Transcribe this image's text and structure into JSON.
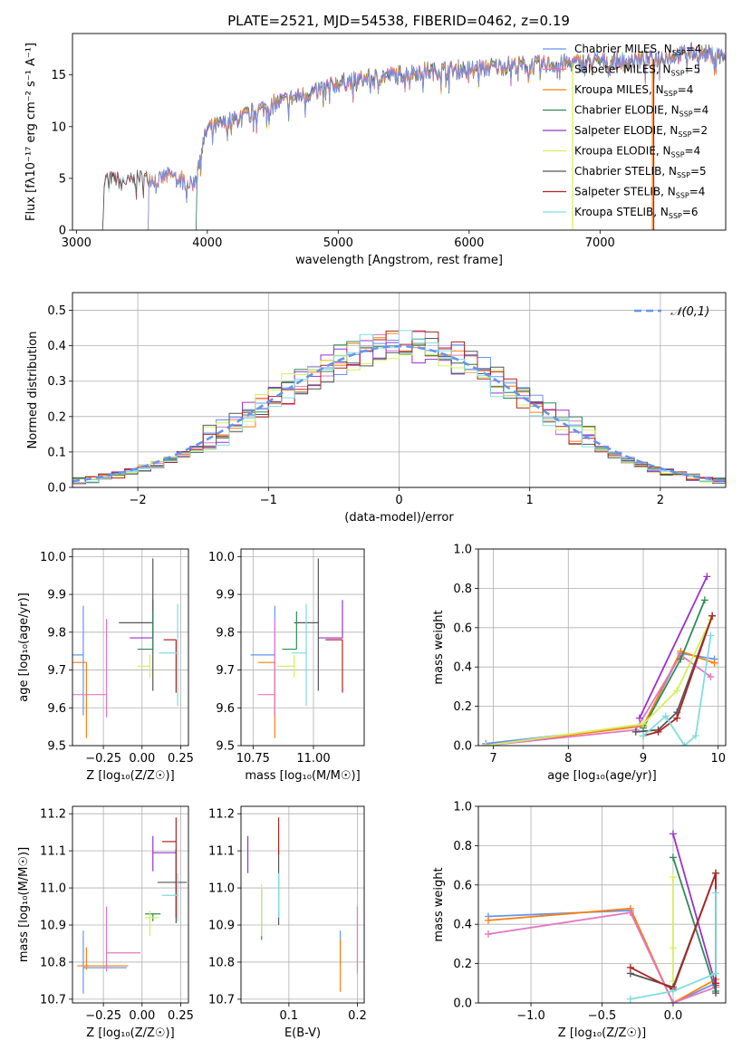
{
  "figure_title": "PLATE=2521, MJD=54538, FIBERID=0462, z=0.19",
  "chart_data": [
    {
      "type": "line",
      "id": "spectrum",
      "xlabel": "wavelength [Angstrom, rest frame]",
      "ylabel": "Flux [fλ10⁻¹⁷ erg cm⁻² s⁻¹ A⁻¹]",
      "xlim": [
        2970,
        7960
      ],
      "ylim": [
        0,
        19
      ],
      "xticks": [
        "3000",
        "4000",
        "5000",
        "6000",
        "7000"
      ],
      "yticks": [
        "0",
        "5",
        "10",
        "15"
      ],
      "grid": false,
      "legend_placement": "right",
      "continuum_nodes": [
        [
          3200,
          0
        ],
        [
          3215,
          4.8
        ],
        [
          3500,
          4.9
        ],
        [
          3700,
          5.2
        ],
        [
          3900,
          4.6
        ],
        [
          3950,
          7.5
        ],
        [
          4000,
          9.8
        ],
        [
          4200,
          10.6
        ],
        [
          4500,
          12.2
        ],
        [
          4800,
          13.3
        ],
        [
          5000,
          14.2
        ],
        [
          5300,
          14.8
        ],
        [
          5600,
          15.3
        ],
        [
          6000,
          15.6
        ],
        [
          6300,
          15.9
        ],
        [
          6600,
          16.0
        ],
        [
          7000,
          16.3
        ],
        [
          7400,
          16.5
        ],
        [
          7700,
          17.2
        ],
        [
          7960,
          16.8
        ]
      ],
      "series": [
        {
          "name": "Chabrier MILES, N",
          "nssp": "=4",
          "color": "#6495ed",
          "start": 3540
        },
        {
          "name": "Salpeter MILES, N",
          "nssp": "=5",
          "color": "#e377c2",
          "start": 3540
        },
        {
          "name": "Kroupa MILES, N",
          "nssp": "=4",
          "color": "#ff7f0e",
          "start": 3540
        },
        {
          "name": "Chabrier ELODIE, N",
          "nssp": "=4",
          "color": "#2e8b57",
          "start": 3910
        },
        {
          "name": "Salpeter ELODIE, N",
          "nssp": "=2",
          "color": "#9932cc",
          "start": 3910
        },
        {
          "name": "Kroupa ELODIE, N",
          "nssp": "=4",
          "color": "#d4f05a",
          "start": 3910
        },
        {
          "name": "Chabrier STELIB, N",
          "nssp": "=5",
          "color": "#555555",
          "start": 3200
        },
        {
          "name": "Salpeter STELIB, N",
          "nssp": "=4",
          "color": "#b22222",
          "start": 3200
        },
        {
          "name": "Kroupa STELIB, N",
          "nssp": "=6",
          "color": "#7fdde0",
          "start": 3200
        }
      ]
    },
    {
      "type": "histogram",
      "id": "residuals",
      "xlabel": "(data-model)/error",
      "ylabel": "Normed distribution",
      "xlim": [
        -2.5,
        2.5
      ],
      "ylim": [
        0,
        0.55
      ],
      "xticks": [
        "−2",
        "−1",
        "0",
        "1",
        "2"
      ],
      "yticks": [
        "0.0",
        "0.1",
        "0.2",
        "0.3",
        "0.4",
        "0.5"
      ],
      "grid": true,
      "legend_placement": "top-right",
      "reference_curve": {
        "name": "𝒩(0,1)",
        "color": "#6495ed"
      },
      "bin_width": 0.1
    },
    {
      "type": "scatter",
      "id": "age-vs-Z",
      "xlabel": "Z [log₁₀(Z/Z☉)]",
      "ylabel": "age  [log₁₀(age/yr)]",
      "xlim": [
        -0.45,
        0.3
      ],
      "ylim": [
        9.5,
        10.02
      ],
      "xticks": [
        "−0.25",
        "0.00",
        "0.25"
      ],
      "yticks": [
        "9.5",
        "9.6",
        "9.7",
        "9.8",
        "9.9",
        "10.0"
      ],
      "points": [
        {
          "color": "#6495ed",
          "x": -0.38,
          "xerr": [
            0.22,
            0
          ],
          "y": 9.74,
          "yerr": [
            0.16,
            0.13
          ]
        },
        {
          "color": "#ff7f0e",
          "x": -0.36,
          "xerr": [
            0.3,
            0
          ],
          "y": 9.72,
          "yerr": [
            0.2,
            0.0
          ]
        },
        {
          "color": "#e377c2",
          "x": -0.23,
          "xerr": [
            0.22,
            0
          ],
          "y": 9.635,
          "yerr": [
            0.06,
            0.2
          ]
        },
        {
          "color": "#9932cc",
          "x": 0.07,
          "xerr": [
            0.15,
            0
          ],
          "y": 9.785,
          "yerr": [
            0.0,
            0.1
          ]
        },
        {
          "color": "#555555",
          "x": 0.07,
          "xerr": [
            0.22,
            0
          ],
          "y": 9.825,
          "yerr": [
            0.18,
            0.17
          ]
        },
        {
          "color": "#b22222",
          "x": 0.22,
          "xerr": [
            0.08,
            0
          ],
          "y": 9.78,
          "yerr": [
            0.14,
            0.0
          ]
        },
        {
          "color": "#7fdde0",
          "x": 0.23,
          "xerr": [
            0.12,
            0
          ],
          "y": 9.745,
          "yerr": [
            0.14,
            0.13
          ]
        },
        {
          "color": "#2e8b57",
          "x": 0.07,
          "xerr": [
            0.1,
            0
          ],
          "y": 9.755,
          "yerr": [
            0.0,
            0.1
          ]
        },
        {
          "color": "#d4f05a",
          "x": 0.05,
          "xerr": [
            0.08,
            0
          ],
          "y": 9.71,
          "yerr": [
            0.03,
            0.03
          ]
        }
      ]
    },
    {
      "type": "scatter",
      "id": "age-vs-mass",
      "xlabel": "mass [log₁₀(M/M☉)]",
      "ylabel": "",
      "xlim": [
        10.7,
        11.21
      ],
      "ylim": [
        9.5,
        10.02
      ],
      "xticks": [
        "10.75",
        "11.00"
      ],
      "yticks": [
        "9.5",
        "9.6",
        "9.7",
        "9.8",
        "9.9",
        "10.0"
      ],
      "points": [
        {
          "color": "#6495ed",
          "x": 10.84,
          "xerr": [
            0.1,
            0
          ],
          "y": 9.74,
          "yerr": [
            0.16,
            0.13
          ]
        },
        {
          "color": "#ff7f0e",
          "x": 10.84,
          "xerr": [
            0.07,
            0
          ],
          "y": 9.72,
          "yerr": [
            0.2,
            0.0
          ]
        },
        {
          "color": "#e377c2",
          "x": 10.84,
          "xerr": [
            0.07,
            0
          ],
          "y": 9.635,
          "yerr": [
            0.06,
            0.2
          ]
        },
        {
          "color": "#9932cc",
          "x": 11.12,
          "xerr": [
            0.1,
            0
          ],
          "y": 9.785,
          "yerr": [
            0.0,
            0.1
          ]
        },
        {
          "color": "#555555",
          "x": 11.02,
          "xerr": [
            0.1,
            0
          ],
          "y": 9.825,
          "yerr": [
            0.18,
            0.17
          ]
        },
        {
          "color": "#b22222",
          "x": 11.12,
          "xerr": [
            0.07,
            0
          ],
          "y": 9.78,
          "yerr": [
            0.14,
            0.0
          ]
        },
        {
          "color": "#7fdde0",
          "x": 10.97,
          "xerr": [
            0.06,
            0
          ],
          "y": 9.745,
          "yerr": [
            0.14,
            0.13
          ]
        },
        {
          "color": "#2e8b57",
          "x": 10.93,
          "xerr": [
            0.06,
            0
          ],
          "y": 9.755,
          "yerr": [
            0.0,
            0.1
          ]
        },
        {
          "color": "#d4f05a",
          "x": 10.92,
          "xerr": [
            0.07,
            0
          ],
          "y": 9.71,
          "yerr": [
            0.03,
            0.03
          ]
        }
      ]
    },
    {
      "type": "line",
      "id": "mass-weight-vs-age",
      "xlabel": "age  [log₁₀(age/yr)]",
      "ylabel": "mass weight",
      "xlim": [
        6.8,
        10.1
      ],
      "ylim": [
        0,
        1
      ],
      "xticks": [
        "7",
        "8",
        "9",
        "10"
      ],
      "yticks": [
        "0.0",
        "0.2",
        "0.4",
        "0.6",
        "0.8",
        "1.0"
      ],
      "grid": true,
      "series": [
        {
          "color": "#6495ed",
          "points": [
            [
              6.9,
              0.01
            ],
            [
              9.0,
              0.1
            ],
            [
              9.5,
              0.47
            ],
            [
              9.95,
              0.44
            ]
          ]
        },
        {
          "color": "#ff7f0e",
          "points": [
            [
              6.9,
              0.0
            ],
            [
              9.0,
              0.1
            ],
            [
              9.5,
              0.48
            ],
            [
              9.95,
              0.42
            ]
          ]
        },
        {
          "color": "#e377c2",
          "points": [
            [
              6.9,
              0.0
            ],
            [
              8.9,
              0.08
            ],
            [
              9.5,
              0.46
            ],
            [
              9.9,
              0.35
            ]
          ]
        },
        {
          "color": "#9932cc",
          "points": [
            [
              8.95,
              0.14
            ],
            [
              9.85,
              0.86
            ]
          ]
        },
        {
          "color": "#2e8b57",
          "points": [
            [
              9.0,
              0.09
            ],
            [
              9.5,
              0.44
            ],
            [
              9.82,
              0.74
            ]
          ]
        },
        {
          "color": "#d4f05a",
          "points": [
            [
              6.9,
              0.0
            ],
            [
              9.0,
              0.11
            ],
            [
              9.45,
              0.28
            ],
            [
              9.9,
              0.64
            ]
          ]
        },
        {
          "color": "#555555",
          "points": [
            [
              8.9,
              0.07
            ],
            [
              9.2,
              0.08
            ],
            [
              9.45,
              0.17
            ],
            [
              9.92,
              0.66
            ]
          ]
        },
        {
          "color": "#b22222",
          "points": [
            [
              9.0,
              0.05
            ],
            [
              9.2,
              0.07
            ],
            [
              9.45,
              0.14
            ],
            [
              9.92,
              0.66
            ]
          ]
        },
        {
          "color": "#7fdde0",
          "points": [
            [
              9.0,
              0.05
            ],
            [
              9.3,
              0.15
            ],
            [
              9.55,
              0.0
            ],
            [
              9.7,
              0.05
            ],
            [
              9.9,
              0.56
            ]
          ]
        }
      ]
    },
    {
      "type": "scatter",
      "id": "mass-vs-Z",
      "xlabel": "Z [log₁₀(Z/Z☉)]",
      "ylabel": "mass [log₁₀(M/M☉)]",
      "xlim": [
        -0.45,
        0.3
      ],
      "ylim": [
        10.69,
        11.22
      ],
      "xticks": [
        "−0.25",
        "0.00",
        "0.25"
      ],
      "yticks": [
        "10.7",
        "10.8",
        "10.9",
        "11.0",
        "11.1",
        "11.2"
      ],
      "points": [
        {
          "color": "#6495ed",
          "x": -0.38,
          "xerr": [
            0.0,
            0.28
          ],
          "y": 10.785,
          "yerr": [
            0.07,
            0.1
          ]
        },
        {
          "color": "#ff7f0e",
          "x": -0.36,
          "xerr": [
            0.06,
            0.27
          ],
          "y": 10.79,
          "yerr": [
            0.01,
            0.05
          ]
        },
        {
          "color": "#e377c2",
          "x": -0.23,
          "xerr": [
            0.0,
            0.22
          ],
          "y": 10.825,
          "yerr": [
            0.05,
            0.125
          ]
        },
        {
          "color": "#9932cc",
          "x": 0.07,
          "xerr": [
            0.0,
            0.15
          ],
          "y": 11.095,
          "yerr": [
            0.05,
            0.045
          ]
        },
        {
          "color": "#555555",
          "x": 0.22,
          "xerr": [
            0.12,
            0.07
          ],
          "y": 11.015,
          "yerr": [
            0.11,
            0.09
          ]
        },
        {
          "color": "#b22222",
          "x": 0.22,
          "xerr": [
            0.09,
            0.0
          ],
          "y": 11.125,
          "yerr": [
            0.205,
            0.065
          ]
        },
        {
          "color": "#7fdde0",
          "x": 0.23,
          "xerr": [
            0.1,
            0.0
          ],
          "y": 10.98,
          "yerr": [
            0.07,
            0.06
          ]
        },
        {
          "color": "#2e8b57",
          "x": 0.07,
          "xerr": [
            0.05,
            0.05
          ],
          "y": 10.93,
          "yerr": [
            0.02,
            0.0
          ]
        },
        {
          "color": "#d4f05a",
          "x": 0.05,
          "xerr": [
            0.03,
            0.06
          ],
          "y": 10.92,
          "yerr": [
            0.05,
            0.02
          ]
        }
      ]
    },
    {
      "type": "scatter",
      "id": "mass-vs-EBV",
      "xlabel": "E(B-V)",
      "ylabel": "",
      "xlim": [
        0.03,
        0.21
      ],
      "ylim": [
        10.69,
        11.22
      ],
      "xticks": [
        "0.1",
        "0.2"
      ],
      "yticks": [
        "10.7",
        "10.8",
        "10.9",
        "11.0",
        "11.1",
        "11.2"
      ],
      "points": [
        {
          "color": "#6495ed",
          "x": 0.175,
          "y": 10.79,
          "yerr": [
            0.0,
            0.095
          ]
        },
        {
          "color": "#ff7f0e",
          "x": 0.175,
          "y": 10.79,
          "yerr": [
            0.07,
            0.07
          ]
        },
        {
          "color": "#e377c2",
          "x": 0.2,
          "y": 10.86,
          "yerr": [
            0.09,
            0.09
          ]
        },
        {
          "color": "#9932cc",
          "x": 0.04,
          "y": 11.09,
          "yerr": [
            0.05,
            0.05
          ]
        },
        {
          "color": "#555555",
          "x": 0.085,
          "y": 11.0,
          "yerr": [
            0.1,
            0.1
          ]
        },
        {
          "color": "#b22222",
          "x": 0.085,
          "y": 11.11,
          "yerr": [
            0.02,
            0.08
          ]
        },
        {
          "color": "#7fdde0",
          "x": 0.085,
          "y": 10.98,
          "yerr": [
            0.06,
            0.06
          ]
        },
        {
          "color": "#2e8b57",
          "x": 0.06,
          "y": 10.93,
          "yerr": [
            0.07,
            0.07
          ]
        },
        {
          "color": "#d4f05a",
          "x": 0.06,
          "y": 10.94,
          "yerr": [
            0.07,
            0.07
          ]
        }
      ]
    },
    {
      "type": "line",
      "id": "mass-weight-vs-Z",
      "xlabel": "Z [log₁₀(Z/Z☉)]",
      "ylabel": "mass weight",
      "xlim": [
        -1.37,
        0.37
      ],
      "ylim": [
        0,
        1
      ],
      "xticks": [
        "−1.0",
        "−0.5",
        "0.0"
      ],
      "yticks": [
        "0.0",
        "0.2",
        "0.4",
        "0.6",
        "0.8",
        "1.0"
      ],
      "grid": true,
      "series": [
        {
          "color": "#6495ed",
          "points": [
            [
              -1.3,
              0.44
            ],
            [
              -0.3,
              0.47
            ],
            [
              0.0,
              0.0
            ],
            [
              0.3,
              0.1
            ]
          ]
        },
        {
          "color": "#ff7f0e",
          "points": [
            [
              -1.3,
              0.42
            ],
            [
              -0.3,
              0.48
            ],
            [
              0.0,
              0.0
            ],
            [
              0.3,
              0.12
            ]
          ]
        },
        {
          "color": "#e377c2",
          "points": [
            [
              -1.3,
              0.35
            ],
            [
              -0.3,
              0.46
            ],
            [
              0.0,
              0.0
            ],
            [
              0.3,
              0.08
            ]
          ]
        },
        {
          "color": "#9932cc",
          "points": [
            [
              0.0,
              0.86
            ],
            [
              0.3,
              0.09
            ]
          ]
        },
        {
          "color": "#2e8b57",
          "points": [
            [
              0.0,
              0.74
            ],
            [
              0.3,
              0.06
            ]
          ]
        },
        {
          "color": "#d4f05a",
          "points": [
            [
              0.0,
              0.64
            ],
            [
              0.0,
              0.28
            ],
            [
              0.0,
              0.11
            ]
          ]
        },
        {
          "color": "#555555",
          "points": [
            [
              -0.3,
              0.15
            ],
            [
              0.0,
              0.08
            ],
            [
              0.3,
              0.66
            ],
            [
              0.3,
              0.05
            ]
          ]
        },
        {
          "color": "#b22222",
          "points": [
            [
              -0.3,
              0.18
            ],
            [
              0.0,
              0.07
            ],
            [
              0.3,
              0.66
            ],
            [
              0.3,
              0.1
            ]
          ]
        },
        {
          "color": "#7fdde0",
          "points": [
            [
              -0.3,
              0.02
            ],
            [
              0.0,
              0.06
            ],
            [
              0.3,
              0.15
            ],
            [
              0.3,
              0.56
            ]
          ]
        }
      ]
    }
  ]
}
